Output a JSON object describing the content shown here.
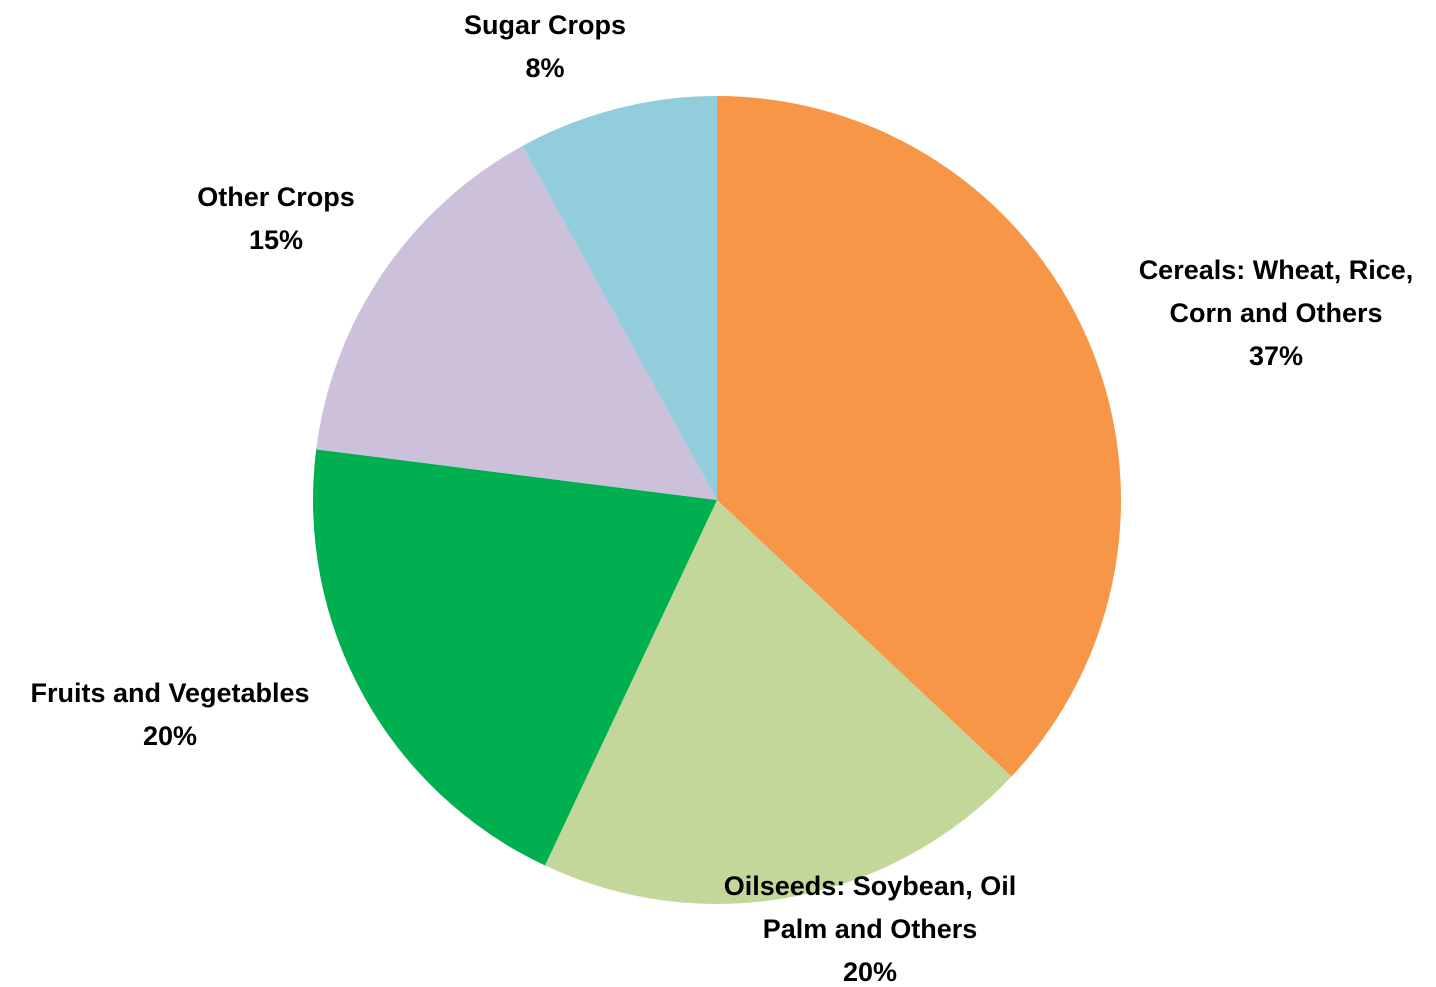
{
  "chart_data": {
    "type": "pie",
    "title": "",
    "start_angle_deg": 0,
    "direction": "clockwise",
    "slices": [
      {
        "label_lines": [
          "Cereals: Wheat, Rice,",
          "Corn and Others"
        ],
        "value": 37,
        "value_label": "37%",
        "color": "#F79646"
      },
      {
        "label_lines": [
          "Oilseeds: Soybean, Oil",
          "Palm and Others"
        ],
        "value": 20,
        "value_label": "20%",
        "color": "#C4D79B"
      },
      {
        "label_lines": [
          "Fruits and Vegetables"
        ],
        "value": 20,
        "value_label": "20%",
        "color": "#00B050"
      },
      {
        "label_lines": [
          "Other Crops"
        ],
        "value": 15,
        "value_label": "15%",
        "color": "#CCC0DA"
      },
      {
        "label_lines": [
          "Sugar Crops"
        ],
        "value": 8,
        "value_label": "8%",
        "color": "#92CDDC"
      }
    ]
  }
}
